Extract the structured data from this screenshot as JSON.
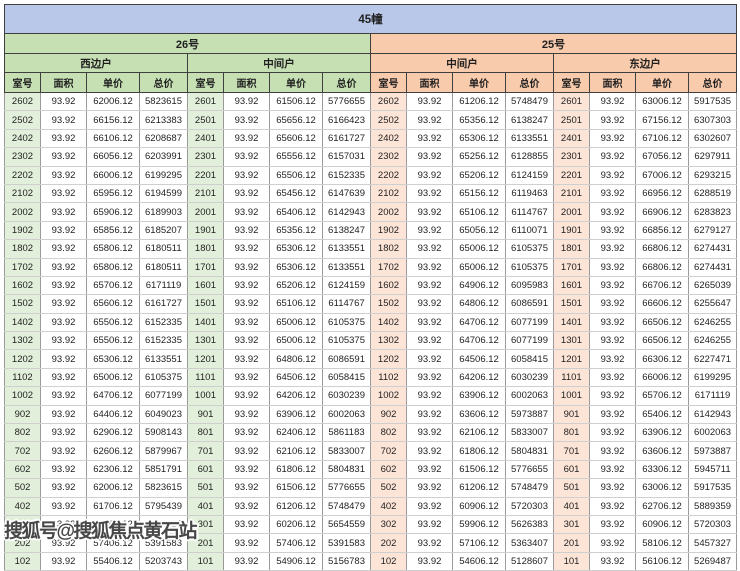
{
  "title": "45幢",
  "watermark": "搜狐号@搜狐焦点黄石站",
  "columns": [
    "室号",
    "面积",
    "单价",
    "总价"
  ],
  "colors": {
    "title_bar": "#b9c8e9",
    "green_header": "#c6e0b4",
    "green_cell": "#e2efda",
    "orange_header": "#f8cbad",
    "orange_cell": "#fce4d6"
  },
  "buildings": [
    {
      "label": "26号",
      "units": [
        {
          "label": "西边户",
          "rows": [
            [
              "2602",
              "93.92",
              "62006.12",
              "5823615"
            ],
            [
              "2502",
              "93.92",
              "66156.12",
              "6213383"
            ],
            [
              "2402",
              "93.92",
              "66106.12",
              "6208687"
            ],
            [
              "2302",
              "93.92",
              "66056.12",
              "6203991"
            ],
            [
              "2202",
              "93.92",
              "66006.12",
              "6199295"
            ],
            [
              "2102",
              "93.92",
              "65956.12",
              "6194599"
            ],
            [
              "2002",
              "93.92",
              "65906.12",
              "6189903"
            ],
            [
              "1902",
              "93.92",
              "65856.12",
              "6185207"
            ],
            [
              "1802",
              "93.92",
              "65806.12",
              "6180511"
            ],
            [
              "1702",
              "93.92",
              "65806.12",
              "6180511"
            ],
            [
              "1602",
              "93.92",
              "65706.12",
              "6171119"
            ],
            [
              "1502",
              "93.92",
              "65606.12",
              "6161727"
            ],
            [
              "1402",
              "93.92",
              "65506.12",
              "6152335"
            ],
            [
              "1302",
              "93.92",
              "65506.12",
              "6152335"
            ],
            [
              "1202",
              "93.92",
              "65306.12",
              "6133551"
            ],
            [
              "1102",
              "93.92",
              "65006.12",
              "6105375"
            ],
            [
              "1002",
              "93.92",
              "64706.12",
              "6077199"
            ],
            [
              "902",
              "93.92",
              "64406.12",
              "6049023"
            ],
            [
              "802",
              "93.92",
              "62906.12",
              "5908143"
            ],
            [
              "702",
              "93.92",
              "62606.12",
              "5879967"
            ],
            [
              "602",
              "93.92",
              "62306.12",
              "5851791"
            ],
            [
              "502",
              "93.92",
              "62006.12",
              "5823615"
            ],
            [
              "402",
              "93.92",
              "61706.12",
              "5795439"
            ],
            [
              "302",
              "93.92",
              "60206.12",
              "5654559"
            ],
            [
              "202",
              "93.92",
              "57406.12",
              "5391583"
            ],
            [
              "102",
              "93.92",
              "55406.12",
              "5203743"
            ]
          ]
        },
        {
          "label": "中间户",
          "rows": [
            [
              "2601",
              "93.92",
              "61506.12",
              "5776655"
            ],
            [
              "2501",
              "93.92",
              "65656.12",
              "6166423"
            ],
            [
              "2401",
              "93.92",
              "65606.12",
              "6161727"
            ],
            [
              "2301",
              "93.92",
              "65556.12",
              "6157031"
            ],
            [
              "2201",
              "93.92",
              "65506.12",
              "6152335"
            ],
            [
              "2101",
              "93.92",
              "65456.12",
              "6147639"
            ],
            [
              "2001",
              "93.92",
              "65406.12",
              "6142943"
            ],
            [
              "1901",
              "93.92",
              "65356.12",
              "6138247"
            ],
            [
              "1801",
              "93.92",
              "65306.12",
              "6133551"
            ],
            [
              "1701",
              "93.92",
              "65306.12",
              "6133551"
            ],
            [
              "1601",
              "93.92",
              "65206.12",
              "6124159"
            ],
            [
              "1501",
              "93.92",
              "65106.12",
              "6114767"
            ],
            [
              "1401",
              "93.92",
              "65006.12",
              "6105375"
            ],
            [
              "1301",
              "93.92",
              "65006.12",
              "6105375"
            ],
            [
              "1201",
              "93.92",
              "64806.12",
              "6086591"
            ],
            [
              "1101",
              "93.92",
              "64506.12",
              "6058415"
            ],
            [
              "1001",
              "93.92",
              "64206.12",
              "6030239"
            ],
            [
              "901",
              "93.92",
              "63906.12",
              "6002063"
            ],
            [
              "801",
              "93.92",
              "62406.12",
              "5861183"
            ],
            [
              "701",
              "93.92",
              "62106.12",
              "5833007"
            ],
            [
              "601",
              "93.92",
              "61806.12",
              "5804831"
            ],
            [
              "501",
              "93.92",
              "61506.12",
              "5776655"
            ],
            [
              "401",
              "93.92",
              "61206.12",
              "5748479"
            ],
            [
              "301",
              "93.92",
              "60206.12",
              "5654559"
            ],
            [
              "201",
              "93.92",
              "57406.12",
              "5391583"
            ],
            [
              "101",
              "93.92",
              "54906.12",
              "5156783"
            ]
          ]
        }
      ]
    },
    {
      "label": "25号",
      "units": [
        {
          "label": "中间户",
          "rows": [
            [
              "2602",
              "93.92",
              "61206.12",
              "5748479"
            ],
            [
              "2502",
              "93.92",
              "65356.12",
              "6138247"
            ],
            [
              "2402",
              "93.92",
              "65306.12",
              "6133551"
            ],
            [
              "2302",
              "93.92",
              "65256.12",
              "6128855"
            ],
            [
              "2202",
              "93.92",
              "65206.12",
              "6124159"
            ],
            [
              "2102",
              "93.92",
              "65156.12",
              "6119463"
            ],
            [
              "2002",
              "93.92",
              "65106.12",
              "6114767"
            ],
            [
              "1902",
              "93.92",
              "65056.12",
              "6110071"
            ],
            [
              "1802",
              "93.92",
              "65006.12",
              "6105375"
            ],
            [
              "1702",
              "93.92",
              "65006.12",
              "6105375"
            ],
            [
              "1602",
              "93.92",
              "64906.12",
              "6095983"
            ],
            [
              "1502",
              "93.92",
              "64806.12",
              "6086591"
            ],
            [
              "1402",
              "93.92",
              "64706.12",
              "6077199"
            ],
            [
              "1302",
              "93.92",
              "64706.12",
              "6077199"
            ],
            [
              "1202",
              "93.92",
              "64506.12",
              "6058415"
            ],
            [
              "1102",
              "93.92",
              "64206.12",
              "6030239"
            ],
            [
              "1002",
              "93.92",
              "63906.12",
              "6002063"
            ],
            [
              "902",
              "93.92",
              "63606.12",
              "5973887"
            ],
            [
              "802",
              "93.92",
              "62106.12",
              "5833007"
            ],
            [
              "702",
              "93.92",
              "61806.12",
              "5804831"
            ],
            [
              "602",
              "93.92",
              "61506.12",
              "5776655"
            ],
            [
              "502",
              "93.92",
              "61206.12",
              "5748479"
            ],
            [
              "402",
              "93.92",
              "60906.12",
              "5720303"
            ],
            [
              "302",
              "93.92",
              "59906.12",
              "5626383"
            ],
            [
              "202",
              "93.92",
              "57106.12",
              "5363407"
            ],
            [
              "102",
              "93.92",
              "54606.12",
              "5128607"
            ]
          ]
        },
        {
          "label": "东边户",
          "rows": [
            [
              "2601",
              "93.92",
              "63006.12",
              "5917535"
            ],
            [
              "2501",
              "93.92",
              "67156.12",
              "6307303"
            ],
            [
              "2401",
              "93.92",
              "67106.12",
              "6302607"
            ],
            [
              "2301",
              "93.92",
              "67056.12",
              "6297911"
            ],
            [
              "2201",
              "93.92",
              "67006.12",
              "6293215"
            ],
            [
              "2101",
              "93.92",
              "66956.12",
              "6288519"
            ],
            [
              "2001",
              "93.92",
              "66906.12",
              "6283823"
            ],
            [
              "1901",
              "93.92",
              "66856.12",
              "6279127"
            ],
            [
              "1801",
              "93.92",
              "66806.12",
              "6274431"
            ],
            [
              "1701",
              "93.92",
              "66806.12",
              "6274431"
            ],
            [
              "1601",
              "93.92",
              "66706.12",
              "6265039"
            ],
            [
              "1501",
              "93.92",
              "66606.12",
              "6255647"
            ],
            [
              "1401",
              "93.92",
              "66506.12",
              "6246255"
            ],
            [
              "1301",
              "93.92",
              "66506.12",
              "6246255"
            ],
            [
              "1201",
              "93.92",
              "66306.12",
              "6227471"
            ],
            [
              "1101",
              "93.92",
              "66006.12",
              "6199295"
            ],
            [
              "1001",
              "93.92",
              "65706.12",
              "6171119"
            ],
            [
              "901",
              "93.92",
              "65406.12",
              "6142943"
            ],
            [
              "801",
              "93.92",
              "63906.12",
              "6002063"
            ],
            [
              "701",
              "93.92",
              "63606.12",
              "5973887"
            ],
            [
              "601",
              "93.92",
              "63306.12",
              "5945711"
            ],
            [
              "501",
              "93.92",
              "63006.12",
              "5917535"
            ],
            [
              "401",
              "93.92",
              "62706.12",
              "5889359"
            ],
            [
              "301",
              "93.92",
              "60906.12",
              "5720303"
            ],
            [
              "201",
              "93.92",
              "58106.12",
              "5457327"
            ],
            [
              "101",
              "93.92",
              "56106.12",
              "5269487"
            ]
          ]
        }
      ]
    }
  ]
}
